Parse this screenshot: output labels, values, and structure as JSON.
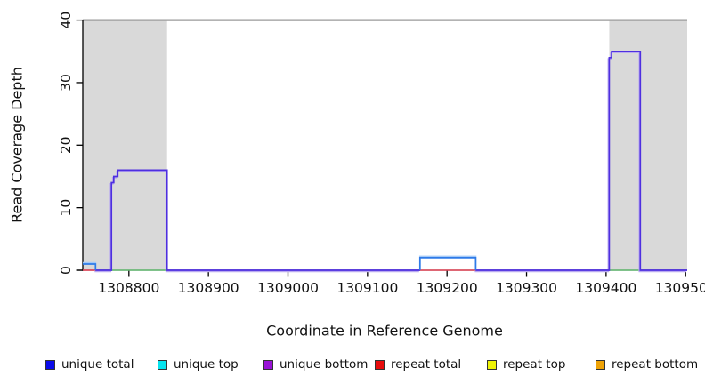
{
  "chart_data": {
    "type": "line",
    "title": "",
    "xlabel": "Coordinate in Reference Genome",
    "ylabel": "Read Coverage Depth",
    "xlim": [
      1308742,
      1309502
    ],
    "ylim": [
      0,
      40
    ],
    "x_ticks": [
      1308800,
      1308900,
      1309000,
      1309100,
      1309200,
      1309300,
      1309400,
      1309500
    ],
    "y_ticks": [
      0,
      10,
      20,
      30,
      40
    ],
    "grid": false,
    "masked_regions": [
      {
        "from": 1308742,
        "to": 1308848
      },
      {
        "from": 1309404,
        "to": 1309502
      }
    ],
    "clip_line_y": 40,
    "series": [
      {
        "name": "repeat total baseline segments",
        "color": "#e8485c",
        "width": 1.6,
        "paths": [
          [
            [
              1308742,
              0
            ],
            [
              1308758,
              0
            ]
          ],
          [
            [
              1309166,
              0
            ],
            [
              1309236,
              0
            ]
          ]
        ]
      },
      {
        "name": "baseline green segments",
        "color": "#6cc47a",
        "width": 1.6,
        "paths": [
          [
            [
              1308778,
              0
            ],
            [
              1308848,
              0
            ]
          ],
          [
            [
              1309404,
              0
            ],
            [
              1309443,
              0
            ]
          ]
        ]
      },
      {
        "name": "unique bottom",
        "color": "#4e2fe0",
        "width": 1.7,
        "echo_color": "#b9aaf0",
        "echo_dx": -1,
        "echo_dy": 1.4,
        "paths": [
          [
            [
              1308758,
              0
            ],
            [
              1308778,
              0
            ],
            [
              1308778,
              14
            ],
            [
              1308781,
              14
            ],
            [
              1308781,
              15
            ],
            [
              1308786,
              15
            ],
            [
              1308786,
              16
            ],
            [
              1308848,
              16
            ],
            [
              1308848,
              0
            ],
            [
              1309166,
              0
            ]
          ],
          [
            [
              1309236,
              0
            ],
            [
              1309404,
              0
            ],
            [
              1309404,
              34
            ],
            [
              1309407,
              34
            ],
            [
              1309407,
              35
            ],
            [
              1309443,
              35
            ],
            [
              1309443,
              0
            ],
            [
              1309502,
              0
            ]
          ]
        ]
      },
      {
        "name": "unique total",
        "color": "#2e7ae8",
        "width": 1.7,
        "echo_color": "#a3c9f7",
        "echo_dx": 0,
        "echo_dy": -1.4,
        "paths": [
          [
            [
              1308742,
              1
            ],
            [
              1308758,
              1
            ],
            [
              1308758,
              0
            ]
          ],
          [
            [
              1309166,
              0
            ],
            [
              1309166,
              2
            ],
            [
              1309236,
              2
            ],
            [
              1309236,
              0
            ]
          ]
        ]
      }
    ],
    "legend": [
      {
        "label": "unique total",
        "fill": "#0b0bea"
      },
      {
        "label": "unique top",
        "fill": "#06e3ee"
      },
      {
        "label": "unique bottom",
        "fill": "#9913d6"
      },
      {
        "label": "repeat total",
        "fill": "#e80c0c"
      },
      {
        "label": "repeat top",
        "fill": "#eff406"
      },
      {
        "label": "repeat bottom",
        "fill": "#efa306"
      }
    ],
    "colors": {
      "masked_region": "#d9d9d9",
      "clip_line": "#9a9a9a",
      "axis": "#000000"
    }
  }
}
